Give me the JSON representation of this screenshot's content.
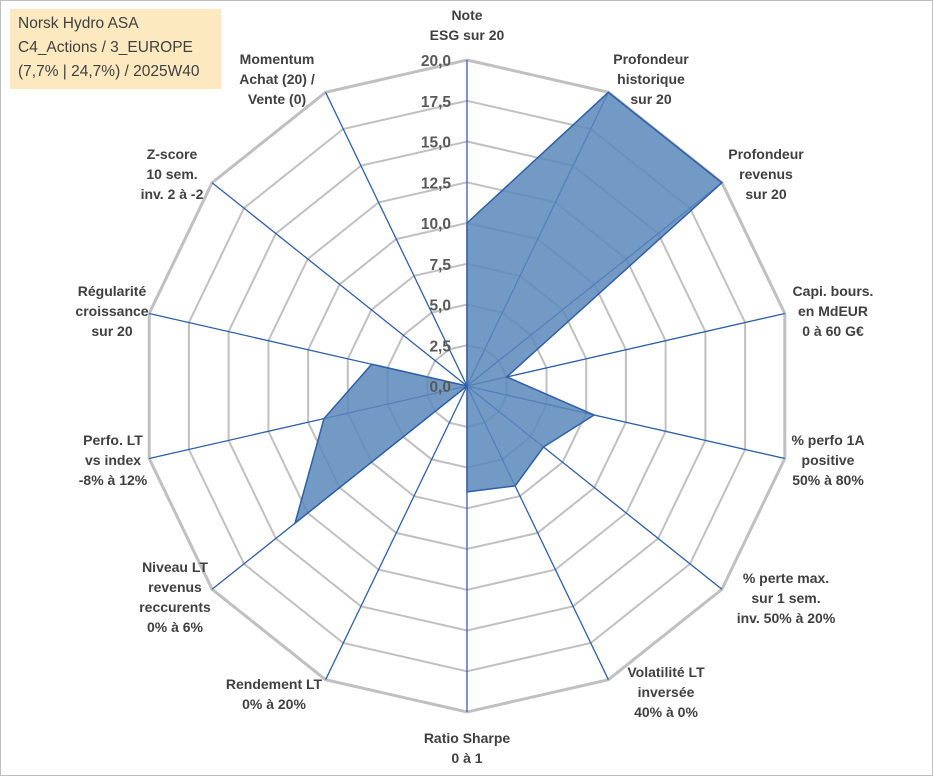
{
  "info": {
    "line1": "Norsk Hydro ASA",
    "line2": "C4_Actions / 3_EUROPE",
    "line3": "(7,7% | 24,7%) / 2025W40"
  },
  "colors": {
    "grid": "#c0c0c0",
    "spoke": "#2f5fa8",
    "fill": "#5b87bb",
    "outline": "#2f5fa8",
    "info_box": "#fde9c0"
  },
  "chart_data": {
    "type": "radar",
    "rmin": 0,
    "rmax": 20,
    "tick_step": 2.5,
    "tick_labels": [
      "0,0",
      "2,5",
      "5,0",
      "7,5",
      "10,0",
      "12,5",
      "15,0",
      "17,5",
      "20,0"
    ],
    "grid": true,
    "categories": [
      [
        "Note",
        "ESG sur 20"
      ],
      [
        "Profondeur",
        "historique",
        "sur 20"
      ],
      [
        "Profondeur",
        "revenus",
        "sur 20"
      ],
      [
        "Capi. bours.",
        "en MdEUR",
        "0 à 60 G€"
      ],
      [
        "% perfo 1A",
        "positive",
        "50% à 80%"
      ],
      [
        "% perte max.",
        "sur 1 sem.",
        "inv. 50% à 20%"
      ],
      [
        "Volatilité LT",
        "inversée",
        "40% à 0%"
      ],
      [
        "Ratio Sharpe",
        "0 à 1"
      ],
      [
        "Rendement LT",
        "0% à 20%"
      ],
      [
        "Niveau LT",
        "revenus",
        "reccurents",
        "0% à 6%"
      ],
      [
        "Perfo. LT",
        "vs index",
        "-8% à 12%"
      ],
      [
        "Régularité",
        "croissance",
        "sur 20"
      ],
      [
        "Z-score",
        "10 sem.",
        "inv. 2 à -2"
      ],
      [
        "Momentum",
        "Achat (20) /",
        "Vente (0)"
      ]
    ],
    "values": [
      10,
      20,
      20,
      2.5,
      8,
      6,
      6.8,
      6.5,
      0,
      13.5,
      9,
      6,
      0,
      0
    ]
  }
}
